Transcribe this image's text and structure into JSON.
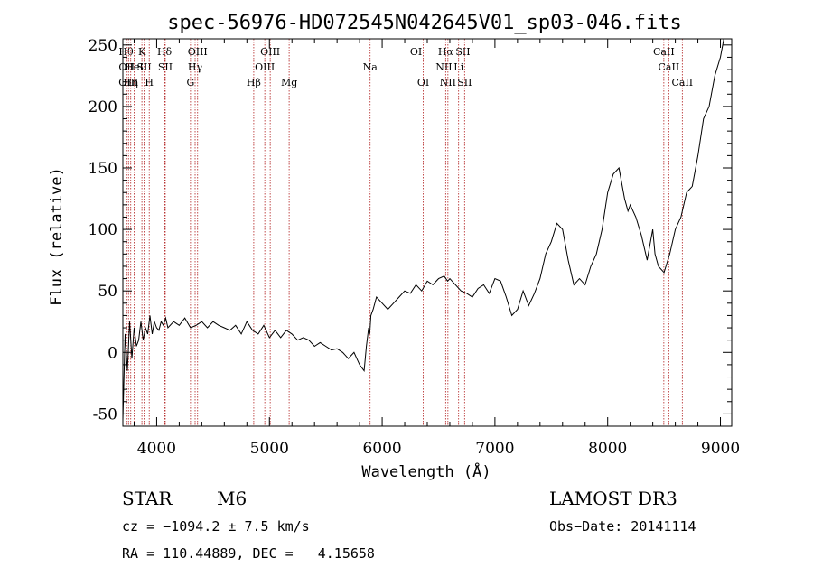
{
  "chart_data": {
    "type": "line",
    "title": "spec-56976-HD072545N042645V01_sp03-046.fits",
    "xlabel": "Wavelength (Å)",
    "ylabel": "Flux (relative)",
    "xlim": [
      3700,
      9100
    ],
    "ylim": [
      -60,
      255
    ],
    "xticks": [
      4000,
      5000,
      6000,
      7000,
      8000,
      9000
    ],
    "yticks": [
      -50,
      0,
      50,
      100,
      150,
      200,
      250
    ],
    "grid": false,
    "line_color": "#000000",
    "marker_color": "#b22222",
    "series": [
      {
        "x": [
          3700,
          3720,
          3740,
          3760,
          3780,
          3800,
          3820,
          3840,
          3860,
          3880,
          3900,
          3920,
          3940,
          3960,
          3980,
          4000,
          4020,
          4040,
          4060,
          4080,
          4100,
          4150,
          4200,
          4250,
          4300,
          4350,
          4400,
          4450,
          4500,
          4550,
          4600,
          4650,
          4700,
          4750,
          4800,
          4850,
          4900,
          4950,
          5000,
          5050,
          5100,
          5150,
          5200,
          5250,
          5300,
          5350,
          5400,
          5450,
          5500,
          5550,
          5600,
          5650,
          5700,
          5750,
          5800,
          5840,
          5860,
          5880,
          5890,
          5900,
          5920,
          5950,
          6000,
          6050,
          6100,
          6150,
          6200,
          6250,
          6300,
          6350,
          6400,
          6450,
          6500,
          6550,
          6580,
          6600,
          6650,
          6700,
          6750,
          6800,
          6850,
          6900,
          6950,
          7000,
          7050,
          7100,
          7150,
          7200,
          7250,
          7300,
          7350,
          7400,
          7450,
          7500,
          7550,
          7600,
          7650,
          7700,
          7750,
          7800,
          7850,
          7900,
          7950,
          8000,
          8050,
          8100,
          8150,
          8180,
          8200,
          8250,
          8300,
          8350,
          8400,
          8420,
          8450,
          8500,
          8550,
          8600,
          8650,
          8700,
          8750,
          8800,
          8850,
          8900,
          8950,
          9000,
          9030
        ],
        "y": [
          -55,
          15,
          -15,
          25,
          -5,
          20,
          5,
          10,
          25,
          10,
          20,
          15,
          30,
          15,
          25,
          20,
          18,
          25,
          22,
          28,
          20,
          25,
          22,
          28,
          20,
          22,
          25,
          20,
          25,
          22,
          20,
          18,
          22,
          15,
          25,
          18,
          15,
          22,
          12,
          18,
          12,
          18,
          15,
          10,
          12,
          10,
          5,
          8,
          5,
          2,
          3,
          0,
          -5,
          0,
          -10,
          -15,
          5,
          20,
          15,
          30,
          35,
          45,
          40,
          35,
          40,
          45,
          50,
          48,
          55,
          50,
          58,
          55,
          60,
          62,
          58,
          60,
          55,
          50,
          48,
          45,
          52,
          55,
          48,
          60,
          58,
          45,
          30,
          35,
          50,
          38,
          48,
          60,
          80,
          90,
          105,
          100,
          75,
          55,
          60,
          55,
          70,
          80,
          100,
          130,
          145,
          150,
          125,
          115,
          120,
          110,
          95,
          75,
          100,
          80,
          70,
          65,
          80,
          100,
          110,
          130,
          135,
          160,
          190,
          200,
          225,
          240,
          255
        ]
      }
    ],
    "line_markers": [
      {
        "x": 3728,
        "row": 1,
        "label": "Hθ"
      },
      {
        "x": 3734,
        "row": 2,
        "label": "OII"
      },
      {
        "x": 3750,
        "row": 3,
        "label": "OIII"
      },
      {
        "x": 3770,
        "row": 3,
        "label": "Hη"
      },
      {
        "x": 3800,
        "row": 2,
        "label": "HeI"
      },
      {
        "x": 3869,
        "row": 1,
        "label": "K"
      },
      {
        "x": 3889,
        "row": 2,
        "label": "SII"
      },
      {
        "x": 3934,
        "row": 3,
        "label": "H"
      },
      {
        "x": 4069,
        "row": 1,
        "label": "Hδ"
      },
      {
        "x": 4076,
        "row": 2,
        "label": "SII"
      },
      {
        "x": 4300,
        "row": 3,
        "label": "G"
      },
      {
        "x": 4341,
        "row": 2,
        "label": "Hγ"
      },
      {
        "x": 4363,
        "row": 1,
        "label": "OIII"
      },
      {
        "x": 4861,
        "row": 3,
        "label": "Hβ"
      },
      {
        "x": 4959,
        "row": 2,
        "label": "OIII"
      },
      {
        "x": 5007,
        "row": 1,
        "label": "OIII"
      },
      {
        "x": 5175,
        "row": 3,
        "label": "Mg"
      },
      {
        "x": 5893,
        "row": 2,
        "label": "Na"
      },
      {
        "x": 6300,
        "row": 1,
        "label": "OI"
      },
      {
        "x": 6364,
        "row": 3,
        "label": "OI"
      },
      {
        "x": 6548,
        "row": 2,
        "label": "NII"
      },
      {
        "x": 6563,
        "row": 1,
        "label": "Hα"
      },
      {
        "x": 6583,
        "row": 3,
        "label": "NII"
      },
      {
        "x": 6678,
        "row": 2,
        "label": "Li"
      },
      {
        "x": 6716,
        "row": 1,
        "label": "SII"
      },
      {
        "x": 6731,
        "row": 3,
        "label": "SII"
      },
      {
        "x": 8498,
        "row": 1,
        "label": "CaII"
      },
      {
        "x": 8542,
        "row": 2,
        "label": "CaII"
      },
      {
        "x": 8662,
        "row": 3,
        "label": "CaII"
      }
    ]
  },
  "info": {
    "object_type": "STAR",
    "subclass": "M6",
    "survey": "LAMOST DR3",
    "cz": "cz = −1094.2 ± 7.5 km/s",
    "obs_date": "Obs−Date: 20141114",
    "coords": "RA = 110.44889, DEC =   4.15658"
  }
}
